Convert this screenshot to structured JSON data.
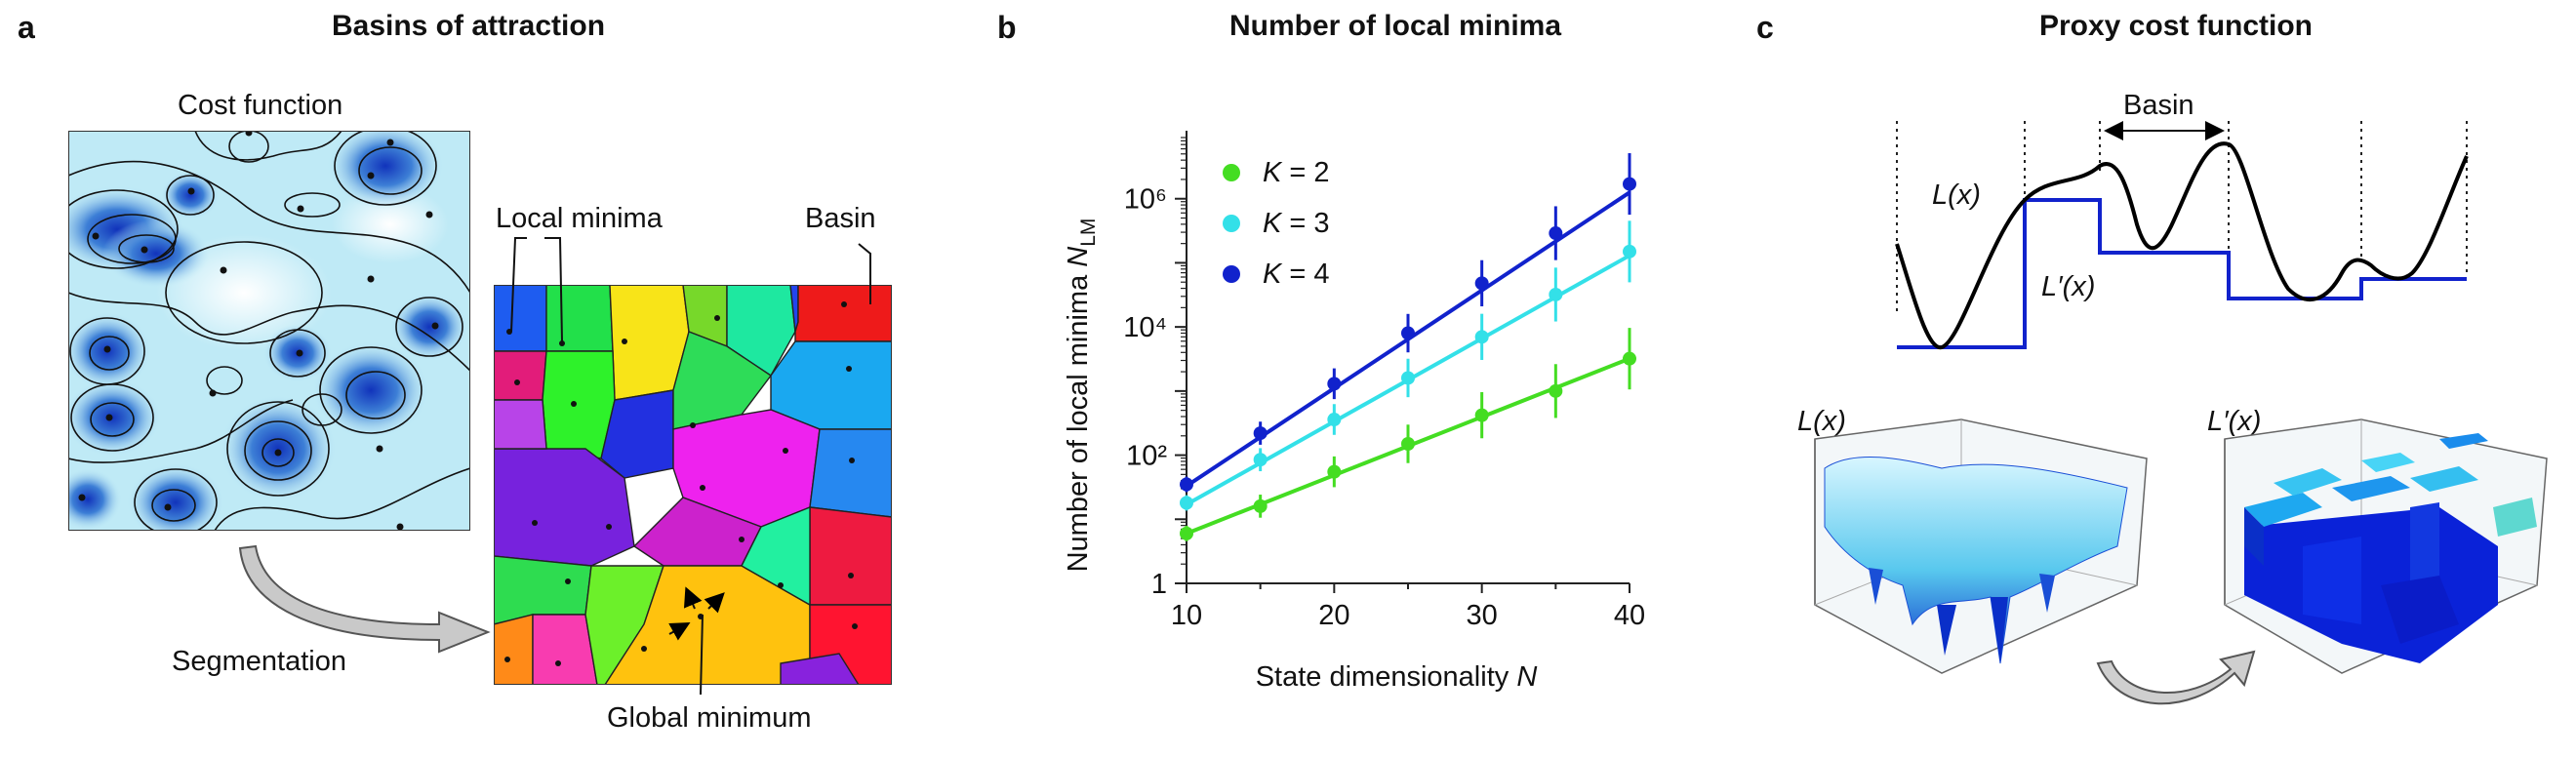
{
  "panels": {
    "a": {
      "letter": "a",
      "title": "Basins of attraction",
      "cost_function_label": "Cost function",
      "segmentation_label": "Segmentation",
      "local_minima_label": "Local minima",
      "basin_label": "Basin",
      "global_minimum_label": "Global minimum"
    },
    "b": {
      "letter": "b",
      "title": "Number of local minima"
    },
    "c": {
      "letter": "c",
      "title": "Proxy cost function",
      "basin_label": "Basin",
      "L_label": "L(x)",
      "Lp_label": "L′(x)",
      "L3d_label": "L(x)",
      "Lp3d_label": "L′(x)"
    }
  },
  "colors": {
    "K2": "#44dd22",
    "K3": "#33e0e8",
    "K4": "#1122cc",
    "proxy_line": "#1122cc",
    "cost_line": "#000000"
  },
  "chart_data": {
    "type": "scatter",
    "title": "Number of local minima",
    "xlabel": "State dimensionality N",
    "ylabel": "Number of local minima N_LM",
    "yscale": "log",
    "xlim": [
      10,
      40
    ],
    "ylim": [
      1,
      10000000
    ],
    "xticks": [
      "10",
      "20",
      "30",
      "40"
    ],
    "yticks": [
      "1",
      "10²",
      "10⁴",
      "10⁶"
    ],
    "legend_position": "top-left",
    "x": [
      10,
      15,
      20,
      25,
      30,
      35,
      40
    ],
    "series": [
      {
        "name": "K = 2",
        "color": "#44dd22",
        "values": [
          6,
          16,
          55,
          150,
          420,
          1000,
          3200
        ],
        "fit": [
          6,
          3200
        ]
      },
      {
        "name": "K = 3",
        "color": "#33e0e8",
        "values": [
          18,
          85,
          360,
          1600,
          7000,
          32000,
          150000
        ],
        "fit": [
          17,
          130000
        ]
      },
      {
        "name": "K = 4",
        "color": "#1122cc",
        "values": [
          35,
          220,
          1300,
          8000,
          48000,
          290000,
          1700000
        ],
        "fit": [
          33,
          1250000
        ]
      }
    ]
  }
}
